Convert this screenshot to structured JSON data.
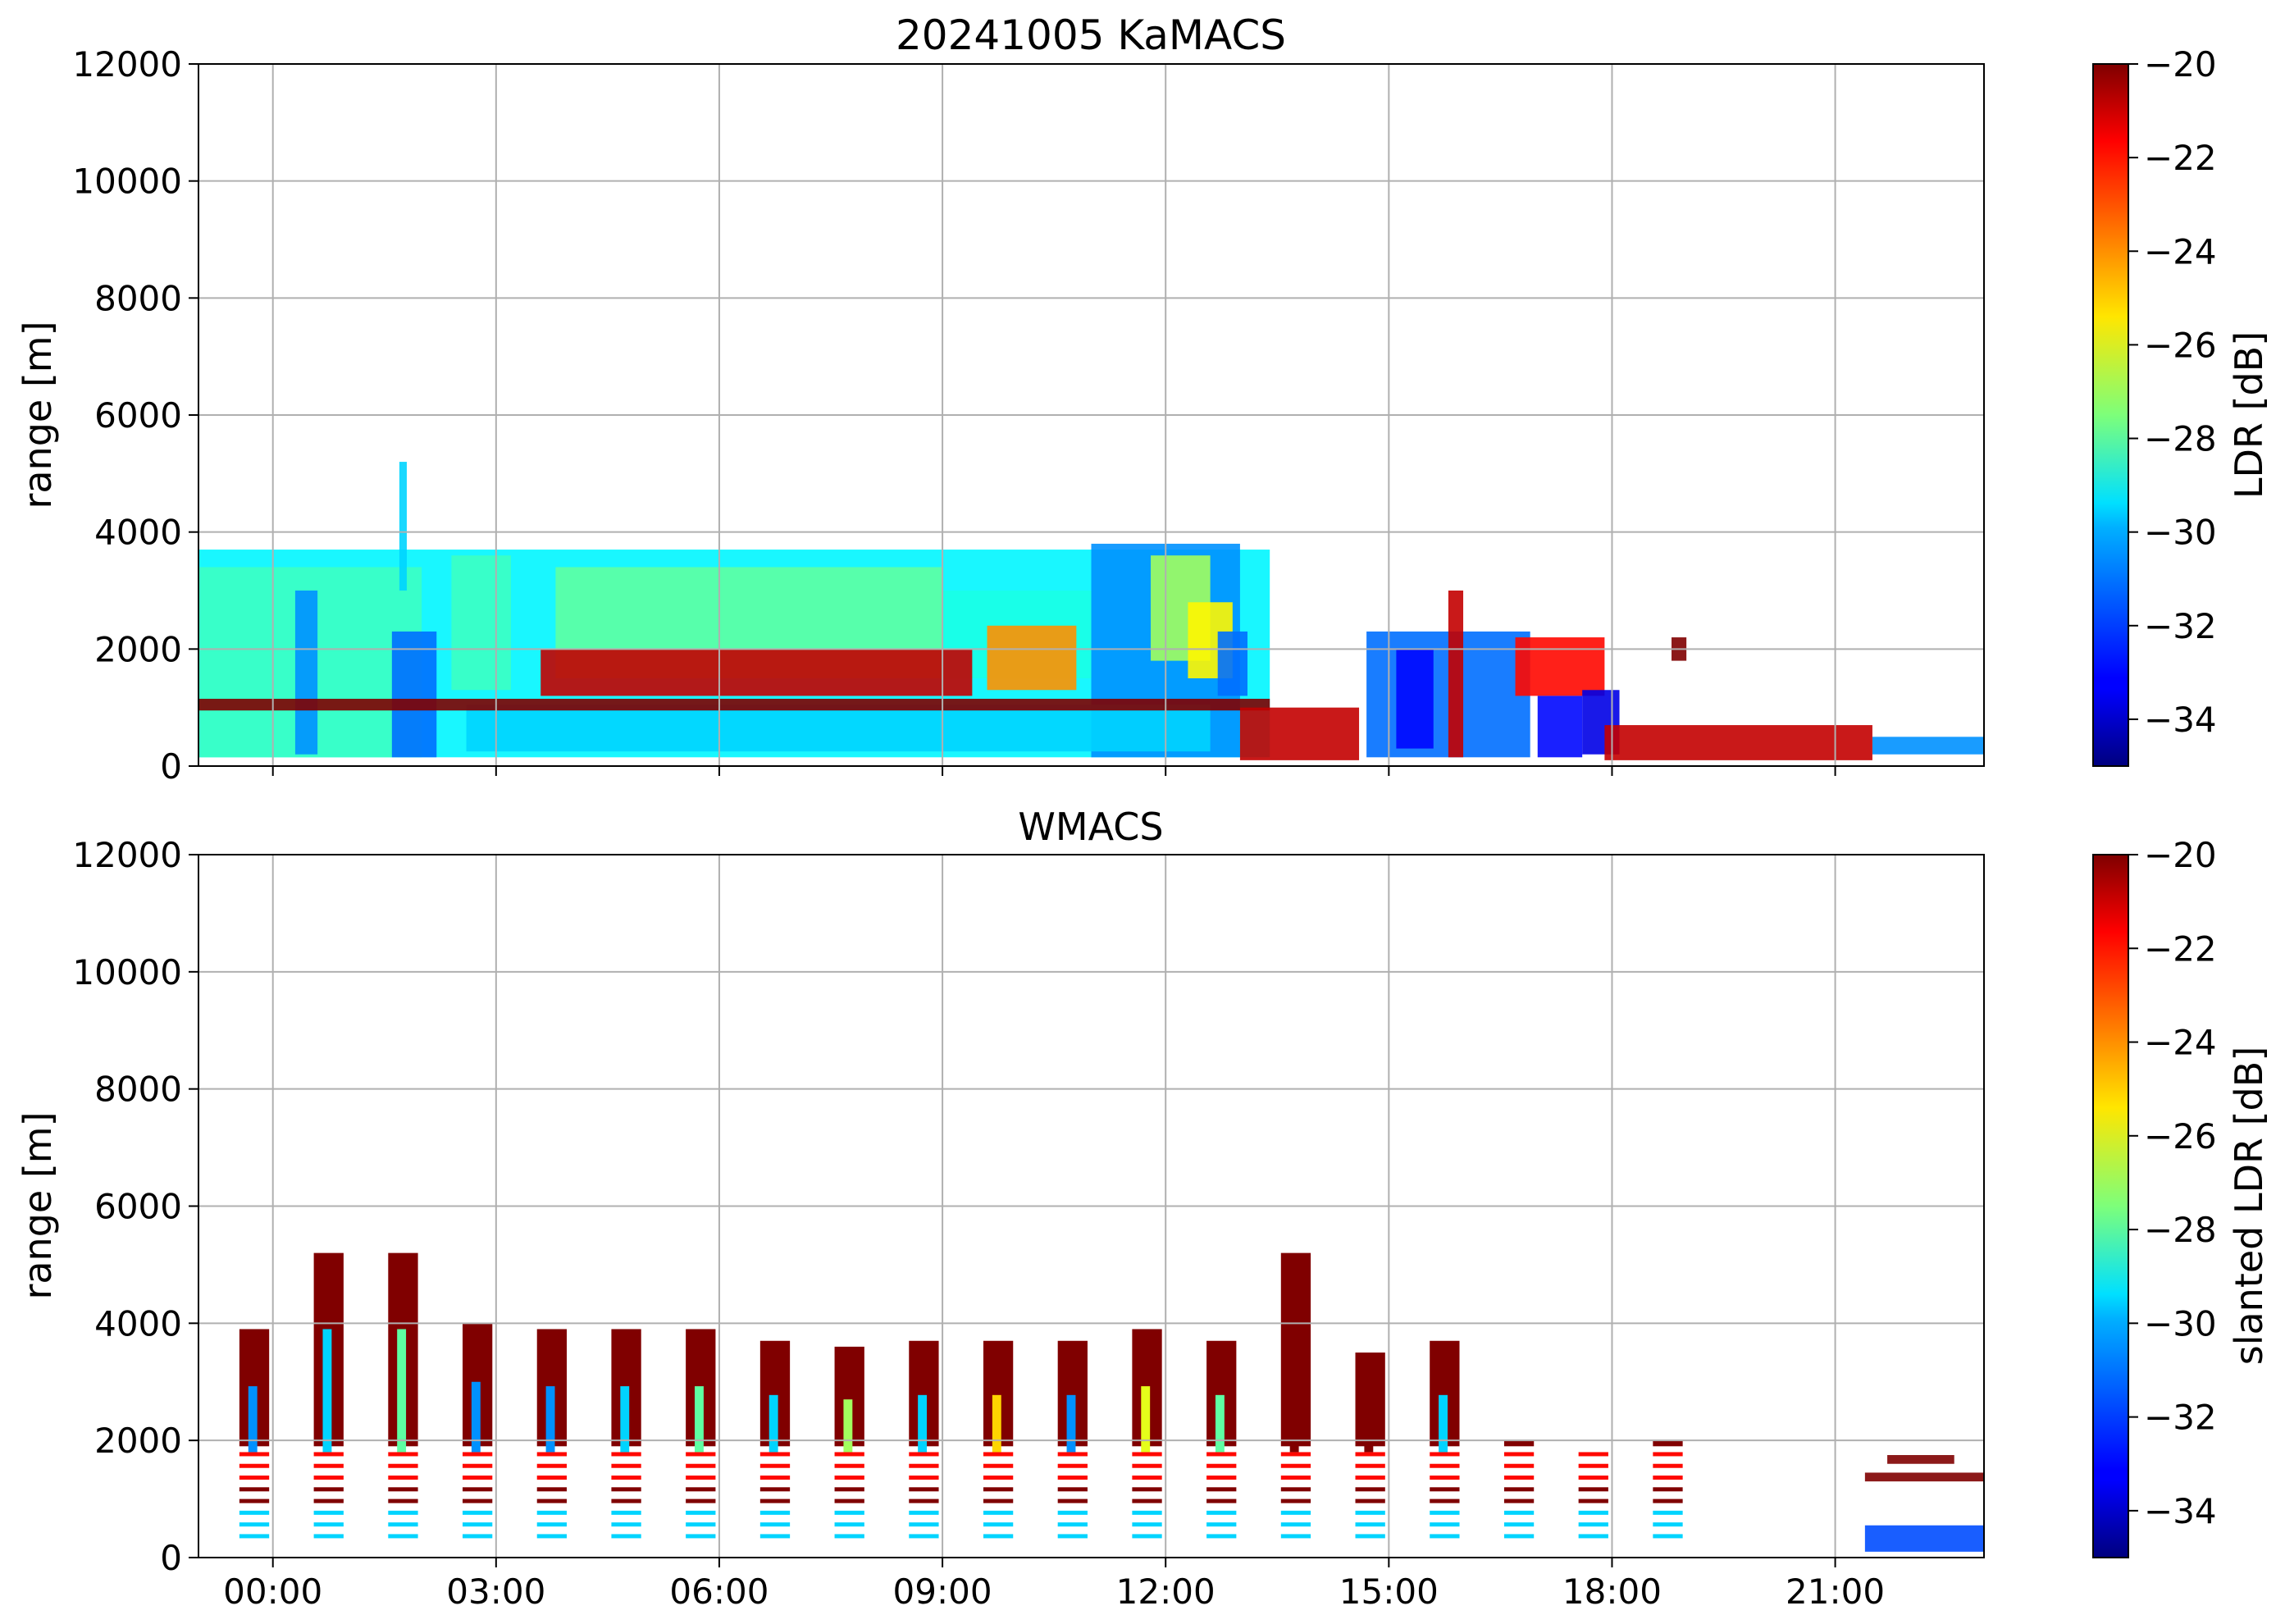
{
  "figure": {
    "title": "20241005 KaMACS"
  },
  "chart_data": [
    {
      "type": "heatmap",
      "panel": "top",
      "title": "20241005 KaMACS",
      "xlabel": "",
      "ylabel": "range [m]",
      "xlim_hours": [
        -1.0,
        23.0
      ],
      "ylim": [
        0,
        12000
      ],
      "x_ticks": [
        "00:00",
        "03:00",
        "06:00",
        "09:00",
        "12:00",
        "15:00",
        "18:00",
        "21:00"
      ],
      "x_tick_hours": [
        0,
        3,
        6,
        9,
        12,
        15,
        18,
        21
      ],
      "x_tick_labels_visible": false,
      "y_ticks": [
        0,
        2000,
        4000,
        6000,
        8000,
        10000,
        12000
      ],
      "grid": true,
      "colorbar": {
        "label": "LDR [dB]",
        "range": [
          -35,
          -20
        ],
        "ticks": [
          -34,
          -32,
          -30,
          -28,
          -26,
          -24,
          -22,
          -20
        ],
        "tick_labels": [
          "−34",
          "−32",
          "−30",
          "−28",
          "−26",
          "−24",
          "−22",
          "−20"
        ],
        "colormap": "jet"
      },
      "regions": [
        {
          "x": [
            -1.0,
            13.4
          ],
          "y": [
            150,
            3700
          ],
          "ldr": -29.5
        },
        {
          "x": [
            -1.0,
            2.0
          ],
          "y": [
            150,
            3400
          ],
          "ldr": -28.5
        },
        {
          "x": [
            0.3,
            0.6
          ],
          "y": [
            200,
            3000
          ],
          "ldr": -31
        },
        {
          "x": [
            1.6,
            2.2
          ],
          "y": [
            150,
            2300
          ],
          "ldr": -31.5
        },
        {
          "x": [
            1.7,
            1.8
          ],
          "y": [
            3000,
            5200
          ],
          "ldr": -30
        },
        {
          "x": [
            2.4,
            3.2
          ],
          "y": [
            1300,
            3600
          ],
          "ldr": -28.5
        },
        {
          "x": [
            3.8,
            9.0
          ],
          "y": [
            1500,
            3400
          ],
          "ldr": -28
        },
        {
          "x": [
            9.0,
            11.0
          ],
          "y": [
            1500,
            3000
          ],
          "ldr": -29
        },
        {
          "x": [
            11.0,
            13.0
          ],
          "y": [
            150,
            3800
          ],
          "ldr": -31
        },
        {
          "x": [
            11.8,
            12.6
          ],
          "y": [
            1800,
            3600
          ],
          "ldr": -27
        },
        {
          "x": [
            12.3,
            12.9
          ],
          "y": [
            1500,
            2800
          ],
          "ldr": -25.5
        },
        {
          "x": [
            12.7,
            13.1
          ],
          "y": [
            1200,
            2300
          ],
          "ldr": -31.5
        },
        {
          "x": [
            2.6,
            12.6
          ],
          "y": [
            250,
            1050
          ],
          "ldr": -30
        },
        {
          "x": [
            3.6,
            9.4
          ],
          "y": [
            1200,
            2000
          ],
          "ldr": -21
        },
        {
          "x": [
            9.6,
            10.8
          ],
          "y": [
            1300,
            2400
          ],
          "ldr": -24
        },
        {
          "x": [
            -1.0,
            13.4
          ],
          "y": [
            950,
            1150
          ],
          "ldr": -20
        },
        {
          "x": [
            14.7,
            16.9
          ],
          "y": [
            150,
            2300
          ],
          "ldr": -31.5
        },
        {
          "x": [
            15.1,
            15.6
          ],
          "y": [
            300,
            2000
          ],
          "ldr": -33
        },
        {
          "x": [
            15.8,
            16.0
          ],
          "y": [
            150,
            3000
          ],
          "ldr": -21
        },
        {
          "x": [
            16.7,
            17.9
          ],
          "y": [
            1200,
            2200
          ],
          "ldr": -22
        },
        {
          "x": [
            17.0,
            17.6
          ],
          "y": [
            150,
            1200
          ],
          "ldr": -33
        },
        {
          "x": [
            17.6,
            18.1
          ],
          "y": [
            200,
            1300
          ],
          "ldr": -33.5
        },
        {
          "x": [
            18.8,
            19.0
          ],
          "y": [
            1800,
            2200
          ],
          "ldr": -20
        },
        {
          "x": [
            21.5,
            23.0
          ],
          "y": [
            200,
            500
          ],
          "ldr": -31
        },
        {
          "x": [
            13.0,
            14.6
          ],
          "y": [
            100,
            1000
          ],
          "ldr": -21
        },
        {
          "x": [
            17.9,
            21.5
          ],
          "y": [
            100,
            700
          ],
          "ldr": -21
        }
      ]
    },
    {
      "type": "heatmap",
      "panel": "bottom",
      "title": "WMACS",
      "xlabel": "",
      "ylabel": "range [m]",
      "xlim_hours": [
        -1.0,
        23.0
      ],
      "ylim": [
        0,
        12000
      ],
      "x_ticks": [
        "00:00",
        "03:00",
        "06:00",
        "09:00",
        "12:00",
        "15:00",
        "18:00",
        "21:00"
      ],
      "x_tick_hours": [
        0,
        3,
        6,
        9,
        12,
        15,
        18,
        21
      ],
      "x_tick_labels_visible": true,
      "y_ticks": [
        0,
        2000,
        4000,
        6000,
        8000,
        10000,
        12000
      ],
      "grid": true,
      "colorbar": {
        "label": "slanted LDR [dB]",
        "range": [
          -35,
          -20
        ],
        "ticks": [
          -34,
          -32,
          -30,
          -28,
          -26,
          -24,
          -22,
          -20
        ],
        "tick_labels": [
          "−34",
          "−32",
          "−30",
          "−28",
          "−26",
          "−24",
          "−22",
          "−20"
        ],
        "colormap": "jet"
      },
      "columns": [
        {
          "x": [
            -0.45,
            -0.05
          ],
          "top": 3900,
          "mid_ldr": -31
        },
        {
          "x": [
            0.55,
            0.95
          ],
          "top": 5200,
          "mid_ldr": -30
        },
        {
          "x": [
            1.55,
            1.95
          ],
          "top": 5200,
          "mid_ldr": -28
        },
        {
          "x": [
            2.55,
            2.95
          ],
          "top": 4000,
          "mid_ldr": -31
        },
        {
          "x": [
            3.55,
            3.95
          ],
          "top": 3900,
          "mid_ldr": -31
        },
        {
          "x": [
            4.55,
            4.95
          ],
          "top": 3900,
          "mid_ldr": -30
        },
        {
          "x": [
            5.55,
            5.95
          ],
          "top": 3900,
          "mid_ldr": -28
        },
        {
          "x": [
            6.55,
            6.95
          ],
          "top": 3700,
          "mid_ldr": -30
        },
        {
          "x": [
            7.55,
            7.95
          ],
          "top": 3600,
          "mid_ldr": -27
        },
        {
          "x": [
            8.55,
            8.95
          ],
          "top": 3700,
          "mid_ldr": -30
        },
        {
          "x": [
            9.55,
            9.95
          ],
          "top": 3700,
          "mid_ldr": -25
        },
        {
          "x": [
            10.55,
            10.95
          ],
          "top": 3700,
          "mid_ldr": -31
        },
        {
          "x": [
            11.55,
            11.95
          ],
          "top": 3900,
          "mid_ldr": -26
        },
        {
          "x": [
            12.55,
            12.95
          ],
          "top": 3700,
          "mid_ldr": -28
        },
        {
          "x": [
            13.55,
            13.95
          ],
          "top": 5200,
          "mid_ldr": -20
        },
        {
          "x": [
            14.55,
            14.95
          ],
          "top": 3500,
          "mid_ldr": -20
        },
        {
          "x": [
            15.55,
            15.95
          ],
          "top": 3700,
          "mid_ldr": -30
        },
        {
          "x": [
            16.55,
            16.95
          ],
          "top": 2000,
          "mid_ldr": -22
        },
        {
          "x": [
            17.55,
            17.95
          ],
          "top": 1900,
          "mid_ldr": -20
        },
        {
          "x": [
            18.55,
            18.95
          ],
          "top": 2000,
          "mid_ldr": -20
        }
      ],
      "regions": [
        {
          "x": [
            21.4,
            23.0
          ],
          "y": [
            100,
            550
          ],
          "ldr": -32
        },
        {
          "x": [
            21.4,
            23.0
          ],
          "y": [
            1300,
            1450
          ],
          "ldr": -20
        },
        {
          "x": [
            21.7,
            22.6
          ],
          "y": [
            1600,
            1750
          ],
          "ldr": -20
        }
      ]
    }
  ]
}
